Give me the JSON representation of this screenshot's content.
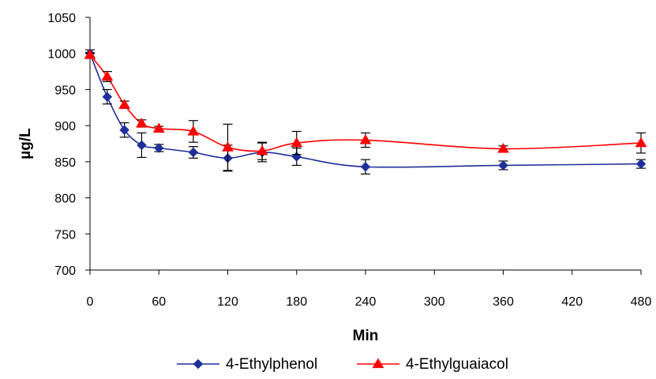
{
  "chart_data": {
    "type": "line",
    "title": "",
    "xlabel": "Min",
    "ylabel": "µg/L",
    "xlim": [
      0,
      480
    ],
    "ylim": [
      700,
      1050
    ],
    "x_ticks": [
      0,
      60,
      120,
      180,
      240,
      300,
      360,
      420,
      480
    ],
    "y_ticks": [
      700,
      750,
      800,
      850,
      900,
      950,
      1000,
      1050
    ],
    "grid": false,
    "legend_position": "bottom",
    "smoothed": true,
    "error_bars": true,
    "series": [
      {
        "name": "4-Ethylphenol",
        "color": "#1f2f9a",
        "marker": "diamond",
        "x": [
          0,
          15,
          30,
          45,
          60,
          90,
          120,
          150,
          180,
          240,
          360,
          480
        ],
        "y": [
          1000,
          940,
          894,
          873,
          869,
          863,
          855,
          863,
          857,
          843,
          845,
          847
        ],
        "error": [
          5,
          10,
          10,
          17,
          5,
          8,
          18,
          13,
          12,
          10,
          6,
          6
        ]
      },
      {
        "name": "4-Ethylguaiacol",
        "color": "#ff0000",
        "marker": "triangle",
        "x": [
          0,
          15,
          30,
          45,
          60,
          90,
          120,
          150,
          180,
          240,
          360,
          480
        ],
        "y": [
          998,
          968,
          929,
          903,
          896,
          892,
          870,
          865,
          876,
          880,
          868,
          876
        ],
        "error": [
          3,
          7,
          5,
          5,
          3,
          15,
          32,
          12,
          16,
          10,
          4,
          14
        ]
      }
    ]
  }
}
